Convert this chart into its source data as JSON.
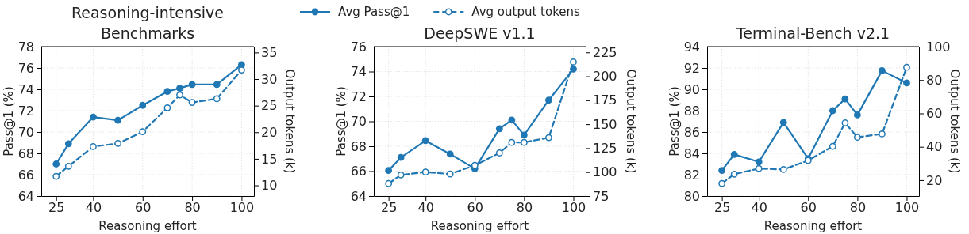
{
  "chart_data": [
    {
      "type": "line",
      "title": "Reasoning-intensive\nBenchmarks",
      "xlabel": "Reasoning effort",
      "ylabel": "Pass@1 (%)",
      "y2label": "Output tokens (k)",
      "x": [
        25,
        30,
        40,
        50,
        60,
        70,
        75,
        80,
        90,
        100
      ],
      "xlim": [
        19,
        105
      ],
      "xticks": [
        25,
        40,
        60,
        80,
        100
      ],
      "ylim": [
        64,
        78
      ],
      "yticks": [
        64,
        66,
        68,
        70,
        72,
        74,
        76,
        78
      ],
      "y2lim": [
        8,
        36.1
      ],
      "y2ticks": [
        10,
        15,
        20,
        25,
        30,
        35
      ],
      "grid": true,
      "legend": "top",
      "series": [
        {
          "name": "Avg Pass@1",
          "color": "#1f77b4",
          "marker": "circle",
          "line_style": "solid",
          "values": [
            67.0,
            68.9,
            71.4,
            71.1,
            72.5,
            73.8,
            74.1,
            74.45,
            74.45,
            76.3
          ]
        },
        {
          "name": "Avg output tokens",
          "color": "#1f77b4",
          "marker": "circle",
          "line_style": "dashed",
          "axis": "y2",
          "values": [
            11.7,
            13.6,
            17.3,
            17.9,
            20.1,
            24.6,
            27.0,
            25.6,
            26.3,
            31.7
          ]
        }
      ]
    },
    {
      "type": "line",
      "title": "DeepSWE v1.1",
      "xlabel": "Reasoning effort",
      "ylabel": "Pass@1 (%)",
      "y2label": "Output tokens (k)",
      "x": [
        25,
        30,
        40,
        50,
        60,
        70,
        75,
        80,
        90,
        100
      ],
      "xlim": [
        19,
        105
      ],
      "xticks": [
        25,
        40,
        60,
        80,
        100
      ],
      "ylim": [
        64,
        76
      ],
      "yticks": [
        64,
        66,
        68,
        70,
        72,
        74,
        76
      ],
      "y2lim": [
        75,
        231
      ],
      "y2ticks": [
        75,
        100,
        125,
        150,
        175,
        200,
        225
      ],
      "grid": true,
      "series": [
        {
          "color": "#1f77b4",
          "marker": "circle",
          "line_style": "solid",
          "values": [
            66.05,
            67.1,
            68.45,
            67.37,
            66.2,
            69.4,
            70.1,
            68.9,
            71.7,
            74.2
          ]
        },
        {
          "color": "#1f77b4",
          "marker": "circle",
          "line_style": "dashed",
          "axis": "y2",
          "values": [
            88,
            97,
            100,
            98,
            107,
            120,
            131,
            131,
            136,
            215
          ]
        }
      ]
    },
    {
      "type": "line",
      "title": "Terminal-Bench v2.1",
      "xlabel": "Reasoning effort",
      "ylabel": "Pass@1 (%)",
      "y2label": "Output tokens (k)",
      "x": [
        25,
        30,
        40,
        50,
        60,
        70,
        75,
        80,
        90,
        100
      ],
      "xlim": [
        19,
        105
      ],
      "xticks": [
        25,
        40,
        60,
        80,
        100
      ],
      "ylim": [
        80,
        94
      ],
      "yticks": [
        80,
        82,
        84,
        86,
        88,
        90,
        92,
        94
      ],
      "y2lim": [
        10.5,
        100
      ],
      "y2ticks": [
        20,
        40,
        60,
        80,
        100
      ],
      "grid": true,
      "series": [
        {
          "color": "#1f77b4",
          "marker": "circle",
          "line_style": "solid",
          "values": [
            82.4,
            83.9,
            83.2,
            86.9,
            83.5,
            88.0,
            89.1,
            87.6,
            91.75,
            90.6
          ]
        },
        {
          "color": "#1f77b4",
          "marker": "circle",
          "line_style": "dashed",
          "axis": "y2",
          "values": [
            18,
            23.6,
            27,
            26.4,
            31.8,
            40.3,
            54.3,
            45.7,
            47.7,
            87.6
          ]
        }
      ]
    }
  ]
}
